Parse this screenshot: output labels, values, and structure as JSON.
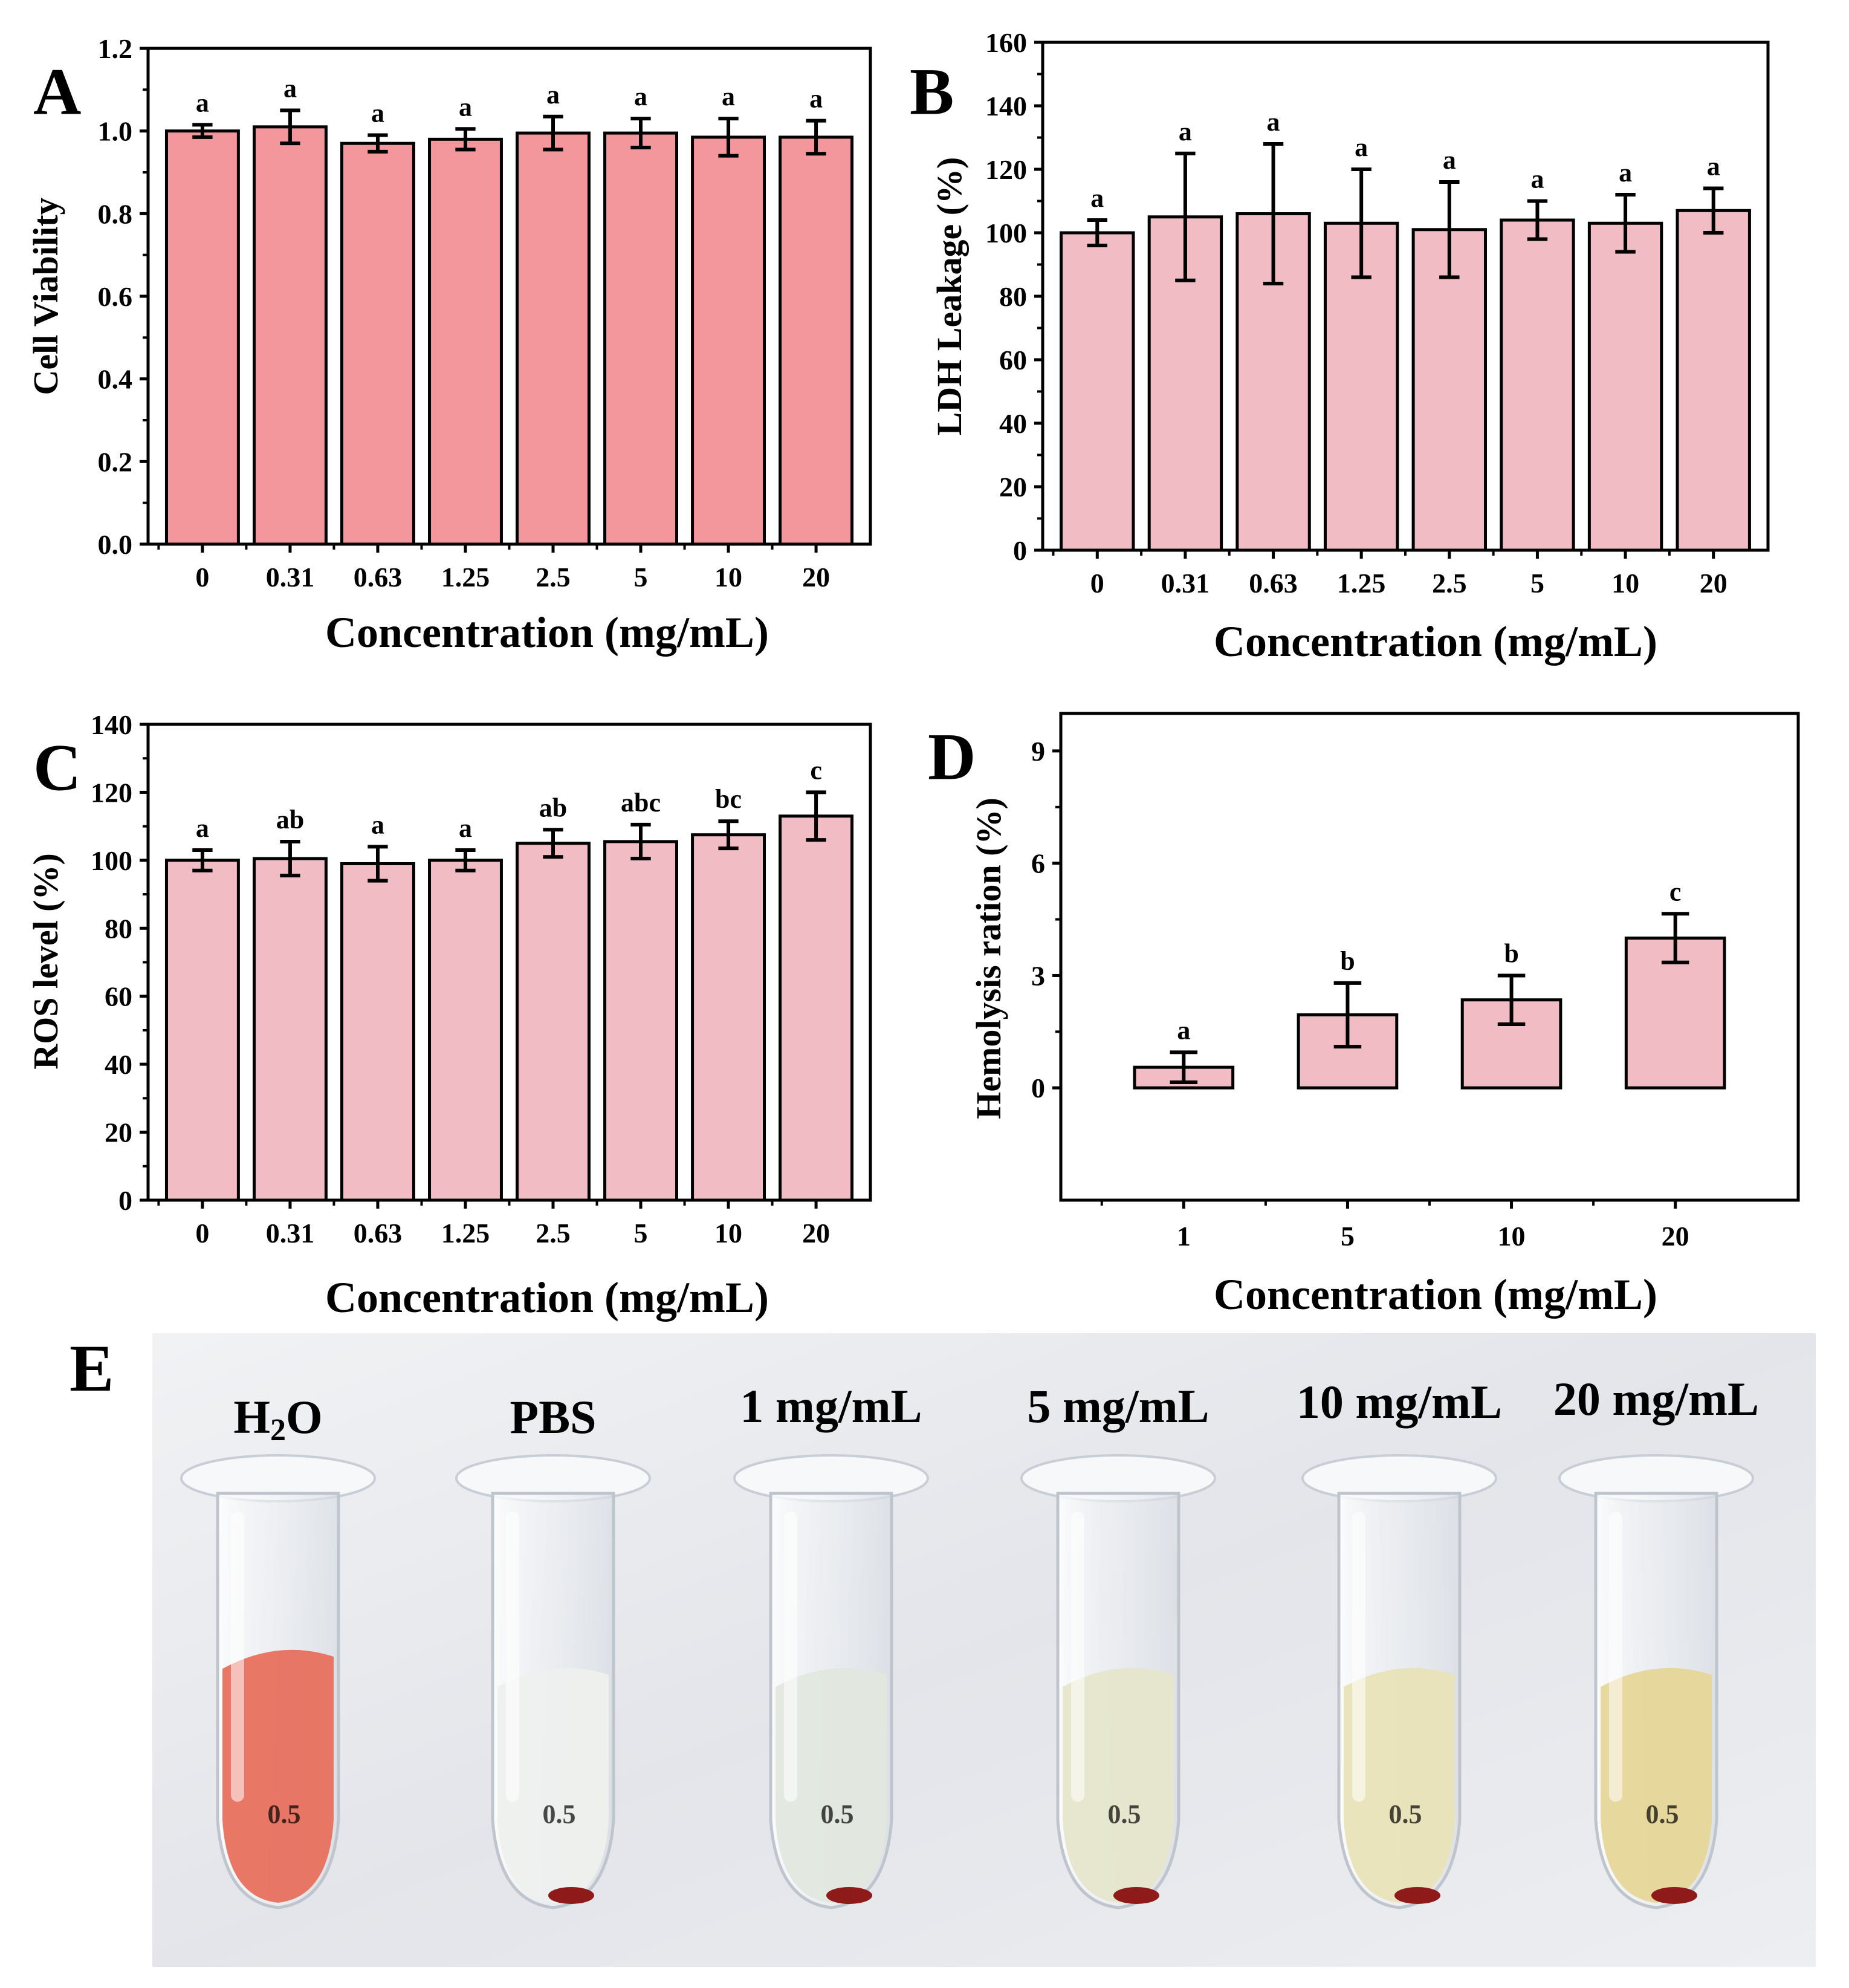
{
  "figure_panels": [
    "A",
    "B",
    "C",
    "D",
    "E"
  ],
  "colors": {
    "bar_a": "#f4979d",
    "bar_pink": "#f2bcc5",
    "ink": "#000000",
    "photo_bg": "#e6e8ec"
  },
  "chart_data": [
    {
      "panel": "A",
      "type": "bar",
      "categories": [
        "0",
        "0.31",
        "0.63",
        "1.25",
        "2.5",
        "5",
        "10",
        "20"
      ],
      "values": [
        1.0,
        1.01,
        0.97,
        0.98,
        0.995,
        0.995,
        0.985,
        0.985
      ],
      "errors": [
        0.015,
        0.04,
        0.02,
        0.025,
        0.04,
        0.035,
        0.045,
        0.04
      ],
      "significance": [
        "a",
        "a",
        "a",
        "a",
        "a",
        "a",
        "a",
        "a"
      ],
      "title": "",
      "xlabel": "Concentration (mg/mL)",
      "ylabel": "Cell Viability",
      "ylim": [
        0,
        1.2
      ],
      "yticks": [
        "0.0",
        "0.2",
        "0.4",
        "0.6",
        "0.8",
        "1.0",
        "1.2"
      ],
      "ytick_values": [
        0,
        0.2,
        0.4,
        0.6,
        0.8,
        1.0,
        1.2
      ]
    },
    {
      "panel": "B",
      "type": "bar",
      "categories": [
        "0",
        "0.31",
        "0.63",
        "1.25",
        "2.5",
        "5",
        "10",
        "20"
      ],
      "values": [
        100,
        105,
        106,
        103,
        101,
        104,
        103,
        107
      ],
      "errors": [
        4,
        20,
        22,
        17,
        15,
        6,
        9,
        7
      ],
      "significance": [
        "a",
        "a",
        "a",
        "a",
        "a",
        "a",
        "a",
        "a"
      ],
      "title": "",
      "xlabel": "Concentration (mg/mL)",
      "ylabel": "LDH Leakage (%)",
      "ylim": [
        0,
        160
      ],
      "yticks": [
        "0",
        "20",
        "40",
        "60",
        "80",
        "100",
        "120",
        "140",
        "160"
      ],
      "ytick_values": [
        0,
        20,
        40,
        60,
        80,
        100,
        120,
        140,
        160
      ]
    },
    {
      "panel": "C",
      "type": "bar",
      "categories": [
        "0",
        "0.31",
        "0.63",
        "1.25",
        "2.5",
        "5",
        "10",
        "20"
      ],
      "values": [
        100,
        100.5,
        99,
        100,
        105,
        105.5,
        107.5,
        113
      ],
      "errors": [
        3,
        5,
        5,
        3,
        4,
        5,
        4,
        7
      ],
      "significance": [
        "a",
        "ab",
        "a",
        "a",
        "ab",
        "abc",
        "bc",
        "c"
      ],
      "title": "",
      "xlabel": "Concentration (mg/mL)",
      "ylabel": "ROS level (%)",
      "ylim": [
        0,
        140
      ],
      "yticks": [
        "0",
        "20",
        "40",
        "60",
        "80",
        "100",
        "120",
        "140"
      ],
      "ytick_values": [
        0,
        20,
        40,
        60,
        80,
        100,
        120,
        140
      ]
    },
    {
      "panel": "D",
      "type": "bar",
      "categories": [
        "1",
        "5",
        "10",
        "20"
      ],
      "values": [
        0.55,
        1.95,
        2.35,
        4.0
      ],
      "errors": [
        0.4,
        0.85,
        0.65,
        0.65
      ],
      "significance": [
        "a",
        "b",
        "b",
        "c"
      ],
      "title": "",
      "xlabel": "Concentration (mg/mL)",
      "ylabel": "Hemolysis ration (%)",
      "ylim": [
        -3,
        10
      ],
      "yticks": [
        "0",
        "3",
        "6",
        "9"
      ],
      "ytick_values": [
        0,
        3,
        6,
        9
      ]
    }
  ],
  "photo": {
    "panel": "E",
    "tubes": [
      {
        "label_main": "H",
        "label_sub": "2",
        "label_tail": "O",
        "liquid": "#e8705e"
      },
      {
        "label_main": "PBS",
        "label_sub": "",
        "label_tail": "",
        "liquid": "#eef0ee"
      },
      {
        "label_main": "1 mg/mL",
        "label_sub": "",
        "label_tail": "",
        "liquid": "#e2e8de"
      },
      {
        "label_main": "5 mg/mL",
        "label_sub": "",
        "label_tail": "",
        "liquid": "#e6e6cc"
      },
      {
        "label_main": "10 mg/mL",
        "label_sub": "",
        "label_tail": "",
        "liquid": "#e9e3b8"
      },
      {
        "label_main": "20 mg/mL",
        "label_sub": "",
        "label_tail": "",
        "liquid": "#e6d698"
      }
    ],
    "tube_graduation": "0.5"
  }
}
